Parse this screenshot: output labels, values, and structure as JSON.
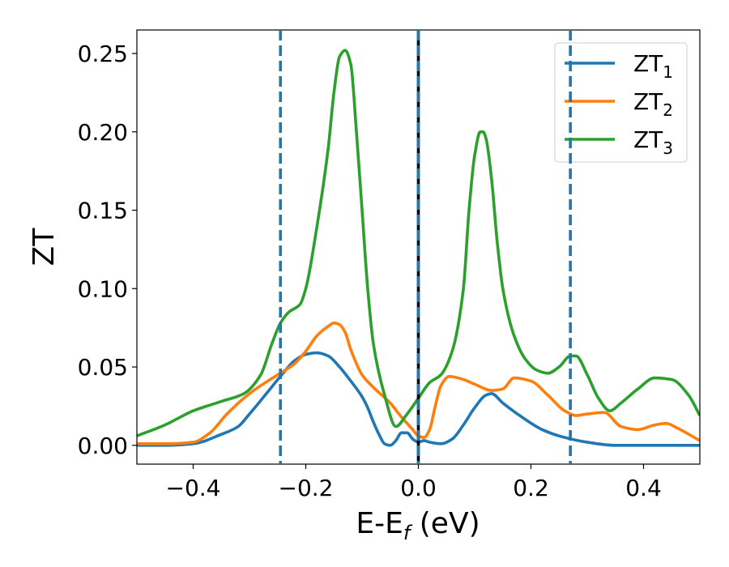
{
  "chart_data": {
    "type": "line",
    "xlabel": "E-E",
    "xlabel_sub": "f",
    "xlabel_unit": " (eV)",
    "ylabel": "ZT",
    "xlim": [
      -0.5,
      0.5
    ],
    "ylim": [
      -0.012,
      0.265
    ],
    "xticks": [
      -0.4,
      -0.2,
      0.0,
      0.2,
      0.4
    ],
    "xtick_labels": [
      "−0.4",
      "−0.2",
      "0.0",
      "0.2",
      "0.4"
    ],
    "yticks": [
      0.0,
      0.05,
      0.1,
      0.15,
      0.2,
      0.25
    ],
    "ytick_labels": [
      "0.00",
      "0.05",
      "0.10",
      "0.15",
      "0.20",
      "0.25"
    ],
    "grid": false,
    "legend_position": "top-right",
    "vertical_lines": [
      {
        "x": -0.245,
        "style": "dashed",
        "color": "#1f77b4"
      },
      {
        "x": 0.0,
        "style": "solid",
        "color": "#000000"
      },
      {
        "x": 0.0,
        "style": "dashed",
        "color": "#1f77b4"
      },
      {
        "x": 0.27,
        "style": "dashed",
        "color": "#1f77b4"
      }
    ],
    "series": [
      {
        "name": "ZT",
        "name_sub": "1",
        "color": "#1f77b4",
        "x": [
          -0.5,
          -0.45,
          -0.4,
          -0.35,
          -0.32,
          -0.3,
          -0.27,
          -0.245,
          -0.22,
          -0.2,
          -0.18,
          -0.16,
          -0.14,
          -0.12,
          -0.1,
          -0.09,
          -0.08,
          -0.07,
          -0.06,
          -0.05,
          -0.04,
          -0.03,
          -0.02,
          -0.01,
          0.0,
          0.01,
          0.02,
          0.04,
          0.06,
          0.08,
          0.1,
          0.12,
          0.13,
          0.15,
          0.18,
          0.22,
          0.25,
          0.3,
          0.35,
          0.4,
          0.45,
          0.5
        ],
        "y": [
          0.0,
          0.0,
          0.001,
          0.007,
          0.012,
          0.02,
          0.033,
          0.044,
          0.054,
          0.058,
          0.059,
          0.057,
          0.05,
          0.041,
          0.031,
          0.024,
          0.015,
          0.007,
          0.001,
          0.0,
          0.003,
          0.008,
          0.008,
          0.004,
          0.002,
          0.003,
          0.002,
          0.001,
          0.004,
          0.013,
          0.024,
          0.032,
          0.033,
          0.027,
          0.019,
          0.01,
          0.006,
          0.002,
          0.0,
          0.0,
          0.0,
          0.0
        ]
      },
      {
        "name": "ZT",
        "name_sub": "2",
        "color": "#ff7f0e",
        "x": [
          -0.5,
          -0.45,
          -0.4,
          -0.37,
          -0.34,
          -0.3,
          -0.25,
          -0.22,
          -0.2,
          -0.18,
          -0.16,
          -0.15,
          -0.14,
          -0.13,
          -0.12,
          -0.1,
          -0.08,
          -0.05,
          -0.03,
          -0.01,
          0.0,
          0.01,
          0.02,
          0.03,
          0.04,
          0.055,
          0.08,
          0.1,
          0.13,
          0.15,
          0.17,
          0.2,
          0.23,
          0.26,
          0.28,
          0.3,
          0.33,
          0.36,
          0.39,
          0.42,
          0.44,
          0.46,
          0.5
        ],
        "y": [
          0.001,
          0.001,
          0.002,
          0.008,
          0.02,
          0.033,
          0.045,
          0.052,
          0.06,
          0.07,
          0.076,
          0.078,
          0.077,
          0.072,
          0.061,
          0.045,
          0.037,
          0.027,
          0.018,
          0.01,
          0.006,
          0.005,
          0.01,
          0.025,
          0.038,
          0.044,
          0.042,
          0.039,
          0.035,
          0.036,
          0.043,
          0.041,
          0.032,
          0.022,
          0.019,
          0.02,
          0.021,
          0.012,
          0.01,
          0.013,
          0.014,
          0.011,
          0.003
        ]
      },
      {
        "name": "ZT",
        "name_sub": "3",
        "color": "#2ca02c",
        "x": [
          -0.5,
          -0.45,
          -0.4,
          -0.35,
          -0.31,
          -0.28,
          -0.26,
          -0.245,
          -0.23,
          -0.21,
          -0.2,
          -0.18,
          -0.16,
          -0.15,
          -0.14,
          -0.13,
          -0.12,
          -0.11,
          -0.1,
          -0.09,
          -0.08,
          -0.06,
          -0.04,
          -0.02,
          0.0,
          0.02,
          0.04,
          0.06,
          0.08,
          0.09,
          0.1,
          0.11,
          0.115,
          0.12,
          0.13,
          0.14,
          0.15,
          0.17,
          0.19,
          0.21,
          0.23,
          0.25,
          0.27,
          0.28,
          0.3,
          0.32,
          0.34,
          0.36,
          0.39,
          0.42,
          0.45,
          0.48,
          0.5
        ],
        "y": [
          0.006,
          0.013,
          0.022,
          0.028,
          0.033,
          0.045,
          0.065,
          0.078,
          0.085,
          0.09,
          0.1,
          0.14,
          0.19,
          0.225,
          0.248,
          0.252,
          0.243,
          0.2,
          0.15,
          0.1,
          0.065,
          0.032,
          0.012,
          0.02,
          0.03,
          0.04,
          0.045,
          0.06,
          0.1,
          0.15,
          0.185,
          0.2,
          0.2,
          0.196,
          0.17,
          0.13,
          0.1,
          0.07,
          0.055,
          0.048,
          0.046,
          0.05,
          0.057,
          0.057,
          0.045,
          0.03,
          0.022,
          0.027,
          0.036,
          0.043,
          0.042,
          0.032,
          0.019
        ]
      }
    ]
  }
}
